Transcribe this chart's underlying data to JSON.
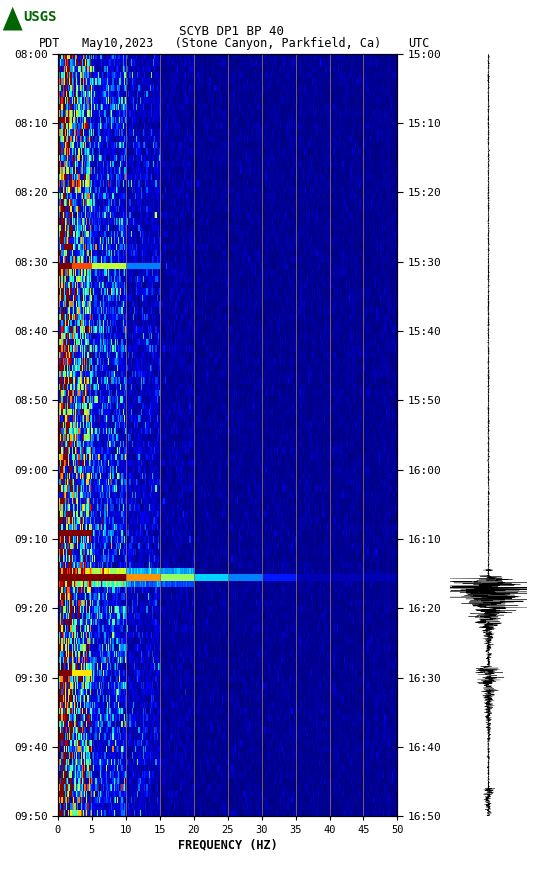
{
  "title_line1": "SCYB DP1 BP 40",
  "title_line2_left": "PDT",
  "title_line2_mid": "May10,2023   (Stone Canyon, Parkfield, Ca)",
  "title_line2_right": "UTC",
  "xlabel": "FREQUENCY (HZ)",
  "freq_min": 0,
  "freq_max": 50,
  "pdt_ticks": [
    "08:00",
    "08:10",
    "08:20",
    "08:30",
    "08:40",
    "08:50",
    "09:00",
    "09:10",
    "09:20",
    "09:30",
    "09:40",
    "09:50"
  ],
  "utc_ticks": [
    "15:00",
    "15:10",
    "15:20",
    "15:30",
    "15:40",
    "15:50",
    "16:00",
    "16:10",
    "16:20",
    "16:30",
    "16:40",
    "16:50"
  ],
  "freq_ticks": [
    0,
    5,
    10,
    15,
    20,
    25,
    30,
    35,
    40,
    45,
    50
  ],
  "vertical_lines_freq": [
    10,
    15,
    20,
    25,
    30,
    35,
    40,
    45
  ],
  "bg_color": "#ffffff",
  "colormap": "jet",
  "usgs_logo_color": "#006400",
  "vline_color": "#8B7355",
  "n_times": 120,
  "n_freqs": 300,
  "event_row": 82
}
